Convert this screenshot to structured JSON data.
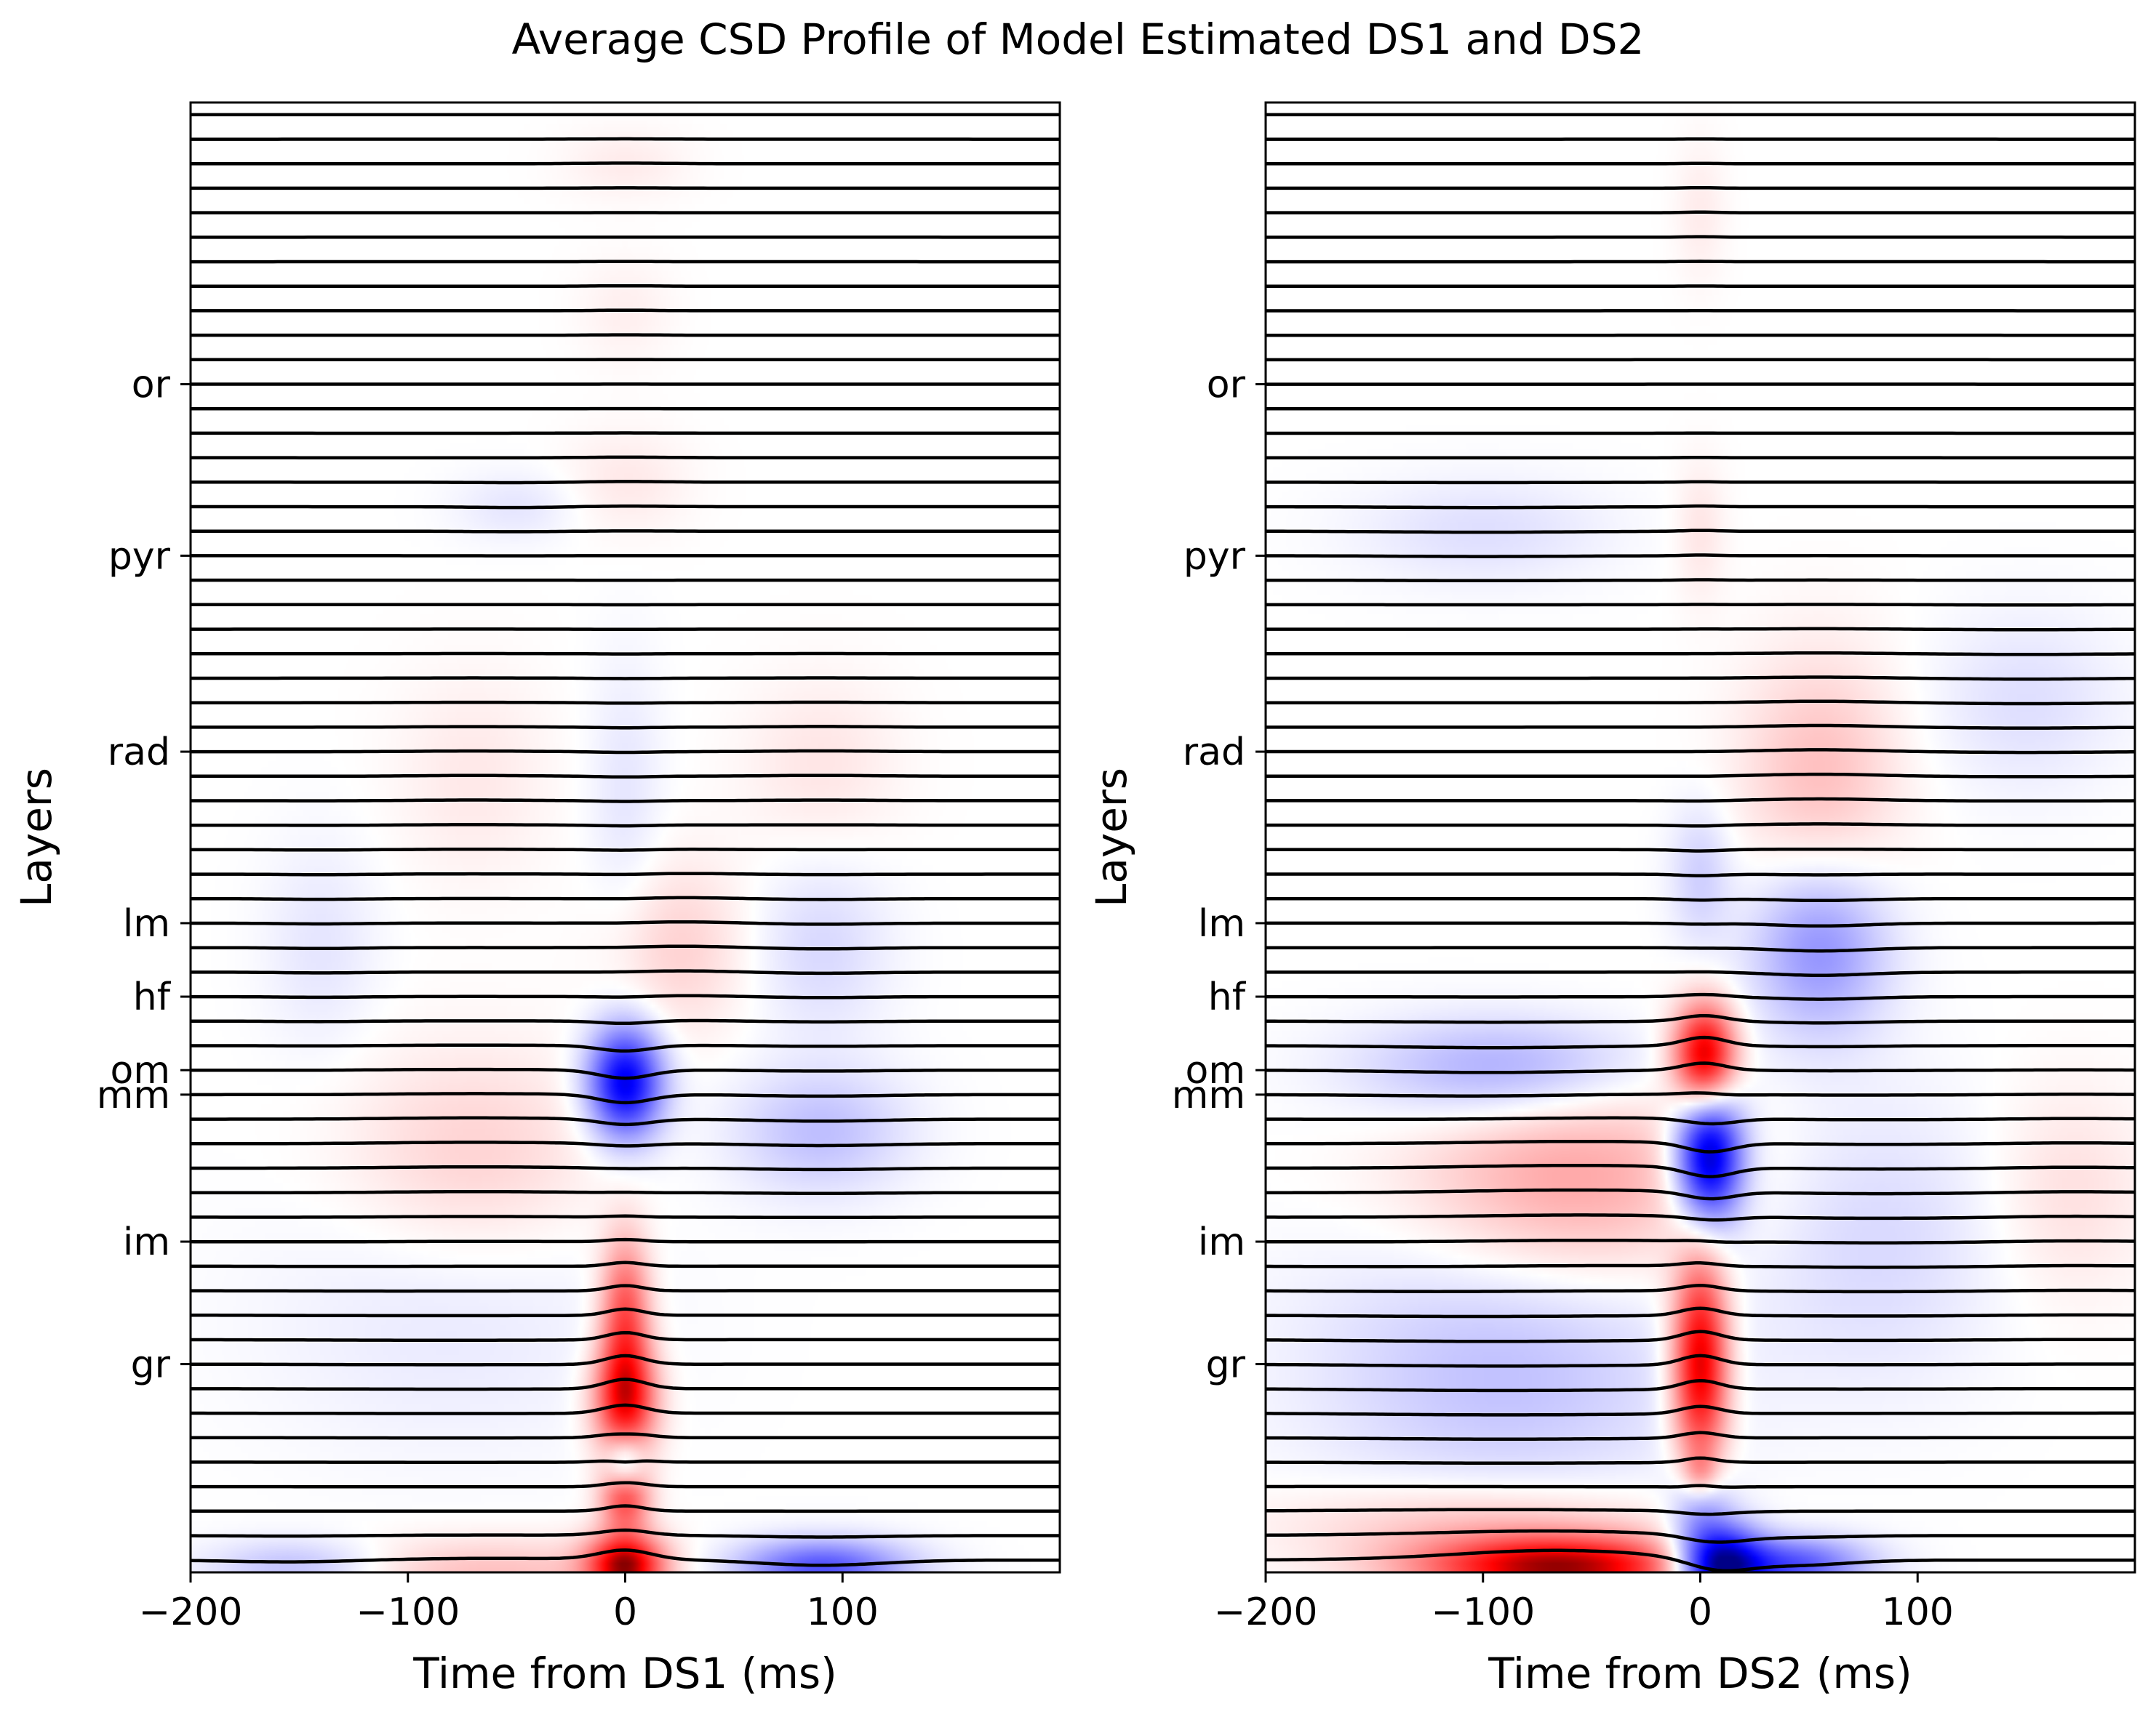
{
  "chart_data": {
    "title": "Average CSD Profile of Model Estimated DS1 and DS2",
    "colors": {
      "source": "#0000ff",
      "sink": "#ff0000",
      "trace": "#000000"
    },
    "panels": [
      {
        "type": "heatmap",
        "overlay": "line",
        "xlabel": "Time from DS1 (ms)",
        "ylabel": "Layers",
        "xlim": [
          -200,
          200
        ],
        "xticks": [
          -200,
          -100,
          0,
          100
        ],
        "xtick_labels": [
          "−200",
          "−100",
          "0",
          "100"
        ],
        "n_channels": 60,
        "layer_ticks": [
          {
            "label": "or",
            "channel": 11
          },
          {
            "label": "pyr",
            "channel": 18
          },
          {
            "label": "rad",
            "channel": 26
          },
          {
            "label": "lm",
            "channel": 33
          },
          {
            "label": "hf",
            "channel": 36
          },
          {
            "label": "om",
            "channel": 39
          },
          {
            "label": "mm",
            "channel": 40
          },
          {
            "label": "im",
            "channel": 46
          },
          {
            "label": "gr",
            "channel": 51
          }
        ],
        "blobs": [
          {
            "t": 0,
            "ch": 39.5,
            "st": 12,
            "sc": 1.6,
            "a": -0.85
          },
          {
            "t": 0,
            "ch": 52.5,
            "st": 10,
            "sc": 1.6,
            "a": 0.75
          },
          {
            "t": 0,
            "ch": 49,
            "st": 8,
            "sc": 2.2,
            "a": 0.55
          },
          {
            "t": 0,
            "ch": 55,
            "st": 6,
            "sc": 0.8,
            "a": -0.35
          },
          {
            "t": 0,
            "ch": 56.5,
            "st": 8,
            "sc": 0.9,
            "a": 0.55
          },
          {
            "t": 0,
            "ch": 59.2,
            "st": 12,
            "sc": 0.9,
            "a": 0.9
          },
          {
            "t": 90,
            "ch": 59.3,
            "st": 28,
            "sc": 0.8,
            "a": -0.55
          },
          {
            "t": -150,
            "ch": 59.3,
            "st": 30,
            "sc": 0.8,
            "a": -0.25
          },
          {
            "t": -65,
            "ch": 59.5,
            "st": 60,
            "sc": 1.0,
            "a": 0.2
          },
          {
            "t": 90,
            "ch": 41.5,
            "st": 28,
            "sc": 1.8,
            "a": -0.2
          },
          {
            "t": -70,
            "ch": 42.5,
            "st": 40,
            "sc": 3.0,
            "a": 0.15
          },
          {
            "t": 25,
            "ch": 34,
            "st": 22,
            "sc": 2.5,
            "a": 0.14
          },
          {
            "t": 90,
            "ch": 34,
            "st": 22,
            "sc": 2.5,
            "a": -0.12
          },
          {
            "t": -140,
            "ch": 34,
            "st": 18,
            "sc": 3.0,
            "a": -0.08
          },
          {
            "t": 0,
            "ch": 28,
            "st": 12,
            "sc": 4.0,
            "a": -0.08
          },
          {
            "t": 90,
            "ch": 26.5,
            "st": 25,
            "sc": 2.5,
            "a": 0.08
          },
          {
            "t": -70,
            "ch": 27,
            "st": 25,
            "sc": 3.0,
            "a": 0.07
          },
          {
            "t": -80,
            "ch": 49,
            "st": 60,
            "sc": 4.0,
            "a": -0.07
          },
          {
            "t": -50,
            "ch": 16,
            "st": 20,
            "sc": 1.0,
            "a": -0.08
          },
          {
            "t": 0,
            "ch": 8,
            "st": 15,
            "sc": 1.5,
            "a": 0.05
          },
          {
            "t": 0,
            "ch": 2,
            "st": 20,
            "sc": 1.0,
            "a": 0.06
          },
          {
            "t": 0,
            "ch": 15,
            "st": 20,
            "sc": 1.5,
            "a": 0.07
          }
        ]
      },
      {
        "type": "heatmap",
        "overlay": "line",
        "xlabel": "Time from DS2 (ms)",
        "ylabel": "Layers",
        "xlim": [
          -200,
          200
        ],
        "xticks": [
          -200,
          -100,
          0,
          100
        ],
        "xtick_labels": [
          "−200",
          "−100",
          "0",
          "100"
        ],
        "n_channels": 60,
        "layer_ticks": [
          {
            "label": "or",
            "channel": 11
          },
          {
            "label": "pyr",
            "channel": 18
          },
          {
            "label": "rad",
            "channel": 26
          },
          {
            "label": "lm",
            "channel": 33
          },
          {
            "label": "hf",
            "channel": 36
          },
          {
            "label": "om",
            "channel": 39
          },
          {
            "label": "mm",
            "channel": 40
          },
          {
            "label": "im",
            "channel": 46
          },
          {
            "label": "gr",
            "channel": 51
          }
        ],
        "blobs": [
          {
            "t": 2,
            "ch": 38.5,
            "st": 10,
            "sc": 1.5,
            "a": 0.95
          },
          {
            "t": 4,
            "ch": 42.5,
            "st": 11,
            "sc": 2.0,
            "a": -1.0
          },
          {
            "t": 0,
            "ch": 51,
            "st": 9,
            "sc": 3.0,
            "a": 0.9
          },
          {
            "t": 0,
            "ch": 55.5,
            "st": 6,
            "sc": 0.7,
            "a": 0.3
          },
          {
            "t": 0,
            "ch": 56.5,
            "st": 9,
            "sc": 1.2,
            "a": -0.35
          },
          {
            "t": 8,
            "ch": 59.2,
            "st": 14,
            "sc": 1.2,
            "a": -1.0
          },
          {
            "t": 40,
            "ch": 59.2,
            "st": 25,
            "sc": 0.8,
            "a": -0.6
          },
          {
            "t": -65,
            "ch": 59.3,
            "st": 45,
            "sc": 0.9,
            "a": 0.95
          },
          {
            "t": -100,
            "ch": 57.5,
            "st": 60,
            "sc": 1.2,
            "a": 0.2
          },
          {
            "t": -60,
            "ch": 43.5,
            "st": 50,
            "sc": 3.0,
            "a": 0.3
          },
          {
            "t": -90,
            "ch": 51,
            "st": 60,
            "sc": 4.0,
            "a": -0.2
          },
          {
            "t": -90,
            "ch": 39,
            "st": 45,
            "sc": 1.5,
            "a": -0.3
          },
          {
            "t": 55,
            "ch": 34,
            "st": 22,
            "sc": 2.5,
            "a": -0.35
          },
          {
            "t": 55,
            "ch": 27,
            "st": 25,
            "sc": 3.5,
            "a": 0.2
          },
          {
            "t": 0,
            "ch": 31,
            "st": 10,
            "sc": 2.0,
            "a": -0.15
          },
          {
            "t": -100,
            "ch": 17,
            "st": 40,
            "sc": 1.5,
            "a": -0.1
          },
          {
            "t": 150,
            "ch": 24,
            "st": 30,
            "sc": 2.5,
            "a": -0.1
          },
          {
            "t": 80,
            "ch": 46,
            "st": 40,
            "sc": 4.0,
            "a": -0.12
          },
          {
            "t": 170,
            "ch": 44,
            "st": 25,
            "sc": 3.0,
            "a": 0.1
          },
          {
            "t": 0,
            "ch": 17,
            "st": 8,
            "sc": 2.0,
            "a": 0.08
          },
          {
            "t": 0,
            "ch": 4,
            "st": 8,
            "sc": 2.0,
            "a": 0.06
          }
        ]
      }
    ]
  }
}
